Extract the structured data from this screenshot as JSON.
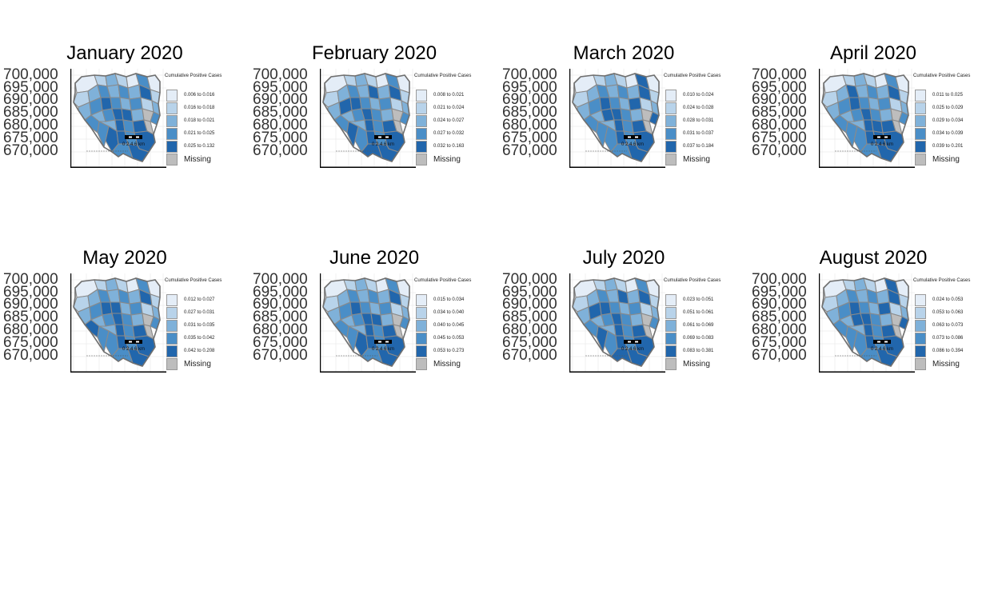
{
  "figure": {
    "legend_title": "Cumulative Positive Cases",
    "missing_label": "Missing",
    "scalebar_label": "0 2 4 6 km",
    "y_ticks": [
      "700,000",
      "695,000",
      "690,000",
      "685,000",
      "680,000",
      "675,000",
      "670,000"
    ],
    "class_colors": [
      "#e4edf7",
      "#b8d3ea",
      "#7fb1d9",
      "#4a8ec7",
      "#2166ac"
    ],
    "missing_color": "#bdbdbd",
    "boundary_color": "#8a8a8a"
  },
  "panels": [
    {
      "title": "January 2020",
      "classes": [
        "0.006 to 0.016",
        "0.016 to 0.018",
        "0.018 to 0.021",
        "0.021 to 0.025",
        "0.025 to 0.132"
      ]
    },
    {
      "title": "February 2020",
      "classes": [
        "0.008 to 0.021",
        "0.021 to 0.024",
        "0.024 to 0.027",
        "0.027 to 0.032",
        "0.032 to 0.163"
      ]
    },
    {
      "title": "March 2020",
      "classes": [
        "0.010 to 0.024",
        "0.024 to 0.028",
        "0.028 to 0.031",
        "0.031 to 0.037",
        "0.037 to 0.184"
      ]
    },
    {
      "title": "April 2020",
      "classes": [
        "0.011 to 0.025",
        "0.025 to 0.029",
        "0.029 to 0.034",
        "0.034 to 0.039",
        "0.039 to 0.201"
      ]
    },
    {
      "title": "May 2020",
      "classes": [
        "0.012 to 0.027",
        "0.027 to 0.031",
        "0.031 to 0.035",
        "0.035 to 0.042",
        "0.042 to 0.208"
      ]
    },
    {
      "title": "June 2020",
      "classes": [
        "0.015 to 0.034",
        "0.034 to 0.040",
        "0.040 to 0.045",
        "0.045 to 0.053",
        "0.053 to 0.273"
      ]
    },
    {
      "title": "July 2020",
      "classes": [
        "0.023 to 0.051",
        "0.051 to 0.061",
        "0.061 to 0.069",
        "0.069 to 0.083",
        "0.083 to 0.381"
      ]
    },
    {
      "title": "August 2020",
      "classes": [
        "0.024 to 0.053",
        "0.053 to 0.063",
        "0.063 to 0.073",
        "0.073 to 0.086",
        "0.086 to 0.394"
      ]
    }
  ]
}
